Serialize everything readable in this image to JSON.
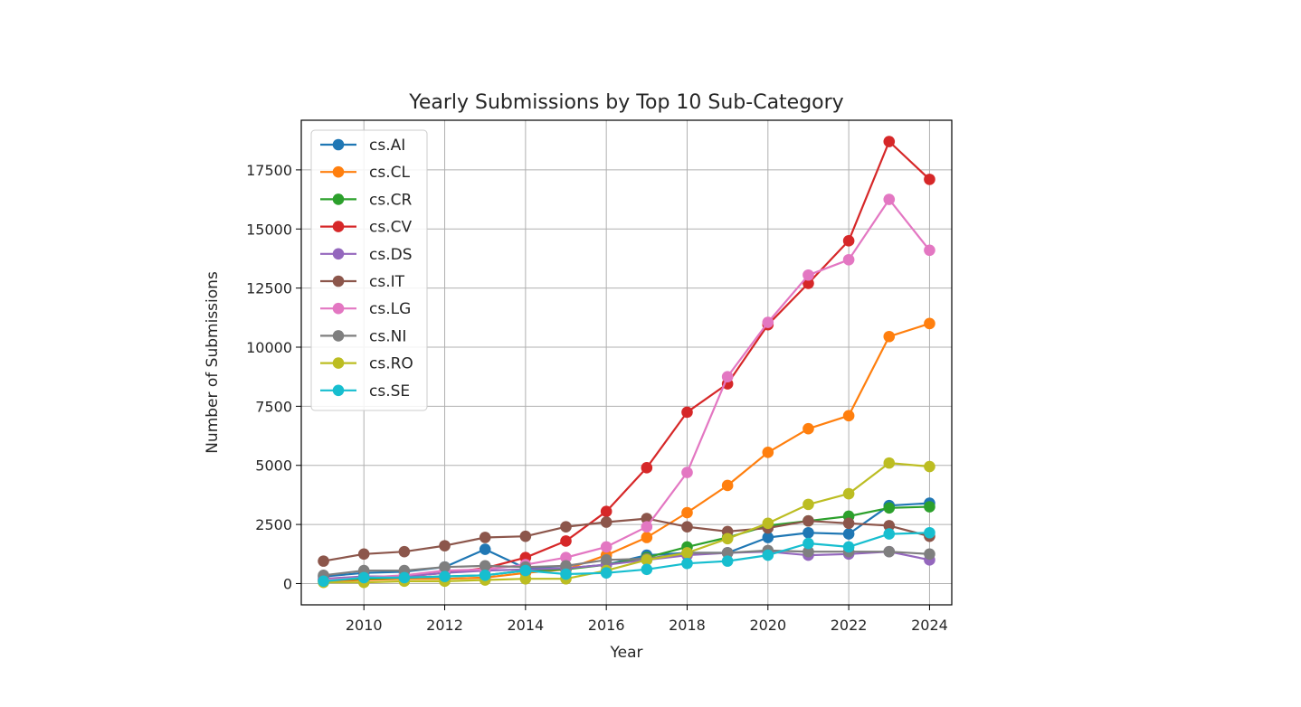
{
  "chart_data": {
    "type": "line",
    "title": "Yearly Submissions by Top 10 Sub-Category",
    "xlabel": "Year",
    "ylabel": "Number of Submissions",
    "xlim": [
      2008.45,
      2024.55
    ],
    "ylim": [
      -900,
      19600
    ],
    "xticks": [
      2010,
      2012,
      2014,
      2016,
      2018,
      2020,
      2022,
      2024
    ],
    "yticks": [
      0,
      2500,
      5000,
      7500,
      10000,
      12500,
      15000,
      17500
    ],
    "grid": true,
    "legend_position": "upper-left",
    "x": [
      2009,
      2010,
      2011,
      2012,
      2013,
      2014,
      2015,
      2016,
      2017,
      2018,
      2019,
      2020,
      2021,
      2022,
      2023,
      2024
    ],
    "series": [
      {
        "name": "cs.AI",
        "color": "#1f77b4",
        "values": [
          300,
          450,
          500,
          700,
          1450,
          650,
          650,
          800,
          1200,
          1300,
          1300,
          1950,
          2150,
          2100,
          3300,
          3400
        ]
      },
      {
        "name": "cs.CL",
        "color": "#ff7f0e",
        "values": [
          100,
          150,
          200,
          200,
          250,
          450,
          600,
          1200,
          1950,
          3000,
          4150,
          5550,
          6550,
          7100,
          10450,
          11000
        ]
      },
      {
        "name": "cs.CR",
        "color": "#2ca02c",
        "values": [
          150,
          200,
          250,
          300,
          350,
          550,
          600,
          800,
          1100,
          1550,
          1950,
          2450,
          2650,
          2850,
          3200,
          3250
        ]
      },
      {
        "name": "cs.CV",
        "color": "#d62728",
        "values": [
          200,
          250,
          300,
          450,
          650,
          1100,
          1800,
          3050,
          4900,
          7250,
          8450,
          10950,
          12700,
          14500,
          18700,
          17100
        ]
      },
      {
        "name": "cs.DS",
        "color": "#9467bd",
        "values": [
          200,
          300,
          300,
          450,
          550,
          600,
          650,
          800,
          1000,
          1200,
          1300,
          1350,
          1200,
          1250,
          1350,
          1000
        ]
      },
      {
        "name": "cs.IT",
        "color": "#8c564b",
        "values": [
          950,
          1250,
          1350,
          1600,
          1950,
          2000,
          2400,
          2600,
          2750,
          2400,
          2200,
          2350,
          2650,
          2550,
          2450,
          2000
        ]
      },
      {
        "name": "cs.LG",
        "color": "#e377c2",
        "values": [
          150,
          250,
          350,
          550,
          600,
          800,
          1100,
          1550,
          2400,
          4700,
          8750,
          11050,
          13050,
          13700,
          16250,
          14100
        ]
      },
      {
        "name": "cs.NI",
        "color": "#7f7f7f",
        "values": [
          350,
          550,
          550,
          700,
          750,
          700,
          750,
          1000,
          1050,
          1300,
          1300,
          1400,
          1350,
          1350,
          1350,
          1250
        ]
      },
      {
        "name": "cs.RO",
        "color": "#bcbd22",
        "values": [
          50,
          50,
          100,
          100,
          150,
          200,
          200,
          550,
          1000,
          1300,
          1900,
          2550,
          3350,
          3800,
          5100,
          4950
        ]
      },
      {
        "name": "cs.SE",
        "color": "#17becf",
        "values": [
          100,
          250,
          250,
          300,
          350,
          550,
          400,
          450,
          600,
          850,
          950,
          1200,
          1700,
          1550,
          2100,
          2150
        ]
      }
    ]
  }
}
